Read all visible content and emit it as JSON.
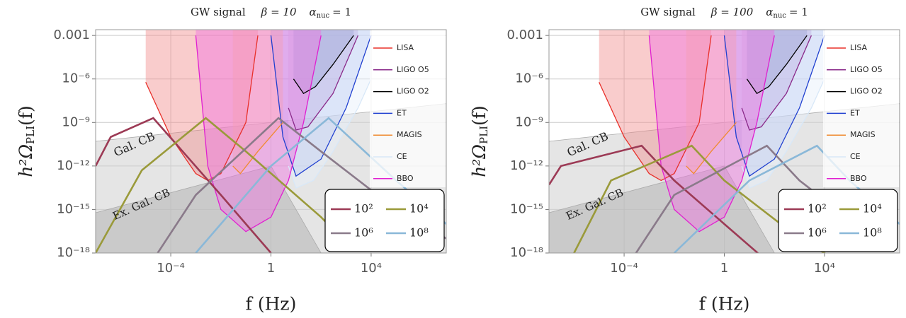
{
  "chart_data": [
    {
      "type": "line",
      "title": "GW signal",
      "beta_label": "β = 10",
      "alpha_label": {
        "symbol": "α",
        "sub": "nuc",
        "rest": "= 1"
      },
      "y_label": {
        "main": "h²Ω",
        "sub": "PLI",
        "rest": "(f)"
      },
      "x_label": "f (Hz)",
      "log_x": true,
      "log_y": true,
      "grid": true,
      "xlim": [
        1e-07,
        10000000.0
      ],
      "xticks": [
        {
          "value": 0.0001,
          "label": "10⁻⁴"
        },
        1,
        {
          "value": 10000,
          "label": "10⁴"
        }
      ],
      "ylim": [
        1e-18,
        0.0025
      ],
      "yticks": [
        0.001,
        {
          "value": 1e-06,
          "label": "10⁻⁶"
        },
        {
          "value": 1e-09,
          "label": "10⁻⁹"
        },
        {
          "value": 1e-12,
          "label": "10⁻¹²"
        },
        {
          "value": 1e-15,
          "label": "10⁻¹⁵"
        },
        {
          "value": 1e-18,
          "label": "10⁻¹⁸"
        }
      ],
      "foregrounds": [
        {
          "name": "Gal. CB",
          "color": "#cfcfcf",
          "x": [
            1e-07,
            10000000.0,
            10000000.0,
            1e-07
          ],
          "values": [
            5e-11,
            2e-08,
            1e-18,
            1e-18
          ]
        },
        {
          "name": "Ex. Gal. CB",
          "color": "#b5b5b5",
          "x": [
            1e-07,
            1,
            100,
            1e-07
          ],
          "values": [
            6e-16,
            1e-12,
            1e-18,
            1e-18
          ]
        }
      ],
      "detector_legend": "right",
      "detectors": [
        {
          "name": "LISA",
          "color": "#e8302a",
          "fill": "#f28f8f",
          "x": [
            1e-05,
            0.0001,
            0.001,
            0.003,
            0.01,
            0.1,
            0.3
          ],
          "values": [
            6e-07,
            1e-10,
            3e-13,
            1e-13,
            3e-13,
            1e-09,
            0.001
          ]
        },
        {
          "name": "LIGO O5",
          "color": "#8a2a8a",
          "fill": "#a05ab8",
          "x": [
            5,
            10,
            30,
            300,
            3000
          ],
          "values": [
            1e-08,
            3e-10,
            5e-10,
            1e-07,
            0.001
          ]
        },
        {
          "name": "LIGO O2",
          "color": "#000000",
          "fill": "#3a3a90",
          "x": [
            8,
            20,
            60,
            300,
            2000
          ],
          "values": [
            1e-06,
            1e-07,
            3e-07,
            1e-05,
            0.001
          ]
        },
        {
          "name": "ET",
          "color": "#2040d0",
          "fill": "#9fb2f0",
          "x": [
            1,
            3,
            10,
            100,
            1000,
            10000
          ],
          "values": [
            0.001,
            1e-10,
            2e-13,
            3e-12,
            1e-08,
            0.001
          ]
        },
        {
          "name": "MAGIS",
          "color": "#f08a30",
          "fill": "#f8c090",
          "x": [
            0.03,
            0.06,
            0.3,
            3
          ],
          "values": [
            1e-12,
            3e-13,
            1e-11,
            1e-09
          ]
        },
        {
          "name": "CE",
          "color": "#d8e8f8",
          "fill": "#e6f0fa",
          "x": [
            5,
            10,
            50,
            300,
            3000,
            10000
          ],
          "values": [
            1e-12,
            3e-14,
            1e-13,
            1e-11,
            1e-08,
            1e-06
          ]
        },
        {
          "name": "BBO",
          "color": "#e020d0",
          "fill": "#f070e0",
          "x": [
            0.001,
            0.003,
            0.01,
            0.1,
            1,
            5,
            20,
            100
          ],
          "values": [
            0.001,
            1e-12,
            1e-15,
            3e-17,
            3e-16,
            1e-13,
            1e-09,
            0.001
          ]
        }
      ],
      "signal_legend": "lower right",
      "series": [
        {
          "name": "10²",
          "color": "#9c3a55",
          "x": [
            1e-07,
            4e-07,
            2e-05,
            0.0003,
            0.01,
            1
          ],
          "values": [
            1e-12,
            1e-10,
            2e-09,
            1e-11,
            1e-14,
            1e-18
          ]
        },
        {
          "name": "10⁴",
          "color": "#9a9a3a",
          "x": [
            1e-07,
            7e-06,
            0.0025,
            0.1,
            100,
            1000
          ],
          "values": [
            1e-18,
            5e-13,
            2e-09,
            1e-11,
            3e-16,
            5e-18
          ]
        },
        {
          "name": "10⁶",
          "color": "#8a7a8a",
          "x": [
            3e-05,
            0.001,
            2,
            100,
            100000,
            10000000.0
          ],
          "values": [
            1e-18,
            1e-14,
            2e-09,
            1e-11,
            1e-15,
            1e-17
          ]
        },
        {
          "name": "10⁸",
          "color": "#8ab8d8",
          "x": [
            0.001,
            1,
            200,
            100000,
            10000000.0
          ],
          "values": [
            1e-18,
            1e-12,
            2e-09,
            1e-13,
            1e-16
          ]
        }
      ]
    },
    {
      "type": "line",
      "title": "GW signal",
      "beta_label": "β = 100",
      "alpha_label": {
        "symbol": "α",
        "sub": "nuc",
        "rest": "= 1"
      },
      "y_label": {
        "main": "h²Ω",
        "sub": "PLI",
        "rest": "(f)"
      },
      "x_label": "f (Hz)",
      "log_x": true,
      "log_y": true,
      "grid": true,
      "xlim": [
        1e-07,
        10000000.0
      ],
      "xticks": [
        {
          "value": 0.0001,
          "label": "10⁻⁴"
        },
        1,
        {
          "value": 10000,
          "label": "10⁴"
        }
      ],
      "ylim": [
        1e-18,
        0.0025
      ],
      "yticks": [
        0.001,
        {
          "value": 1e-06,
          "label": "10⁻⁶"
        },
        {
          "value": 1e-09,
          "label": "10⁻⁹"
        },
        {
          "value": 1e-12,
          "label": "10⁻¹²"
        },
        {
          "value": 1e-15,
          "label": "10⁻¹⁵"
        },
        {
          "value": 1e-18,
          "label": "10⁻¹⁸"
        }
      ],
      "foregrounds": [
        {
          "name": "Gal. CB",
          "color": "#cfcfcf",
          "x": [
            1e-07,
            10000000.0,
            10000000.0,
            1e-07
          ],
          "values": [
            5e-11,
            2e-08,
            1e-18,
            1e-18
          ]
        },
        {
          "name": "Ex. Gal. CB",
          "color": "#b5b5b5",
          "x": [
            1e-07,
            1,
            100,
            1e-07
          ],
          "values": [
            6e-16,
            1e-12,
            1e-18,
            1e-18
          ]
        }
      ],
      "detector_legend": "right",
      "detectors": [
        {
          "name": "LISA",
          "color": "#e8302a",
          "fill": "#f28f8f",
          "x": [
            1e-05,
            0.0001,
            0.001,
            0.003,
            0.01,
            0.1,
            0.3
          ],
          "values": [
            6e-07,
            1e-10,
            3e-13,
            1e-13,
            3e-13,
            1e-09,
            0.001
          ]
        },
        {
          "name": "LIGO O5",
          "color": "#8a2a8a",
          "fill": "#a05ab8",
          "x": [
            5,
            10,
            30,
            300,
            3000
          ],
          "values": [
            1e-08,
            3e-10,
            5e-10,
            1e-07,
            0.001
          ]
        },
        {
          "name": "LIGO O2",
          "color": "#000000",
          "fill": "#3a3a90",
          "x": [
            8,
            20,
            60,
            300,
            2000
          ],
          "values": [
            1e-06,
            1e-07,
            3e-07,
            1e-05,
            0.001
          ]
        },
        {
          "name": "ET",
          "color": "#2040d0",
          "fill": "#9fb2f0",
          "x": [
            1,
            3,
            10,
            100,
            1000,
            10000
          ],
          "values": [
            0.001,
            1e-10,
            2e-13,
            3e-12,
            1e-08,
            0.001
          ]
        },
        {
          "name": "MAGIS",
          "color": "#f08a30",
          "fill": "#f8c090",
          "x": [
            0.03,
            0.06,
            0.3,
            3
          ],
          "values": [
            1e-12,
            3e-13,
            1e-11,
            1e-09
          ]
        },
        {
          "name": "CE",
          "color": "#d8e8f8",
          "fill": "#e6f0fa",
          "x": [
            5,
            10,
            50,
            300,
            3000,
            10000
          ],
          "values": [
            1e-12,
            3e-14,
            1e-13,
            1e-11,
            1e-08,
            1e-06
          ]
        },
        {
          "name": "BBO",
          "color": "#e020d0",
          "fill": "#f070e0",
          "x": [
            0.001,
            0.003,
            0.01,
            0.1,
            1,
            5,
            20,
            100
          ],
          "values": [
            0.001,
            1e-12,
            1e-15,
            3e-17,
            3e-16,
            1e-13,
            1e-09,
            0.001
          ]
        }
      ],
      "signal_legend": "lower right",
      "series": [
        {
          "name": "10²",
          "color": "#9c3a55",
          "x": [
            1e-07,
            3e-07,
            0.0005,
            0.01,
            1,
            100
          ],
          "values": [
            5e-14,
            1e-12,
            2.5e-11,
            1e-13,
            1e-16,
            1e-19
          ]
        },
        {
          "name": "10⁴",
          "color": "#9a9a3a",
          "x": [
            1e-06,
            3e-05,
            0.05,
            1,
            1000,
            100000
          ],
          "values": [
            1e-18,
            1e-13,
            2.5e-11,
            1e-13,
            1e-17,
            1e-19
          ]
        },
        {
          "name": "10⁶",
          "color": "#8a7a8a",
          "x": [
            0.0003,
            0.01,
            50,
            1000,
            1000000
          ],
          "values": [
            1e-18,
            1e-14,
            2.5e-11,
            1e-13,
            1e-17
          ]
        },
        {
          "name": "10⁸",
          "color": "#8ab8d8",
          "x": [
            0.01,
            10,
            5000,
            100000,
            10000000.0
          ],
          "values": [
            1e-18,
            1e-13,
            2.5e-11,
            1e-13,
            1e-16
          ]
        }
      ]
    }
  ]
}
